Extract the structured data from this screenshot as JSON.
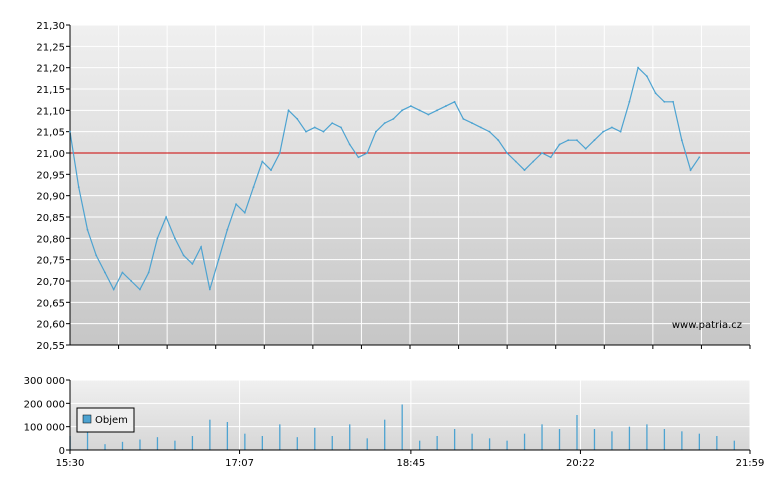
{
  "watermark": "www.patria.cz",
  "colors": {
    "line": "#4da3d1",
    "reference": "#cc0000",
    "volume": "#4da3d1",
    "grid": "#ffffff",
    "axis": "#000000",
    "legend_box": "#4da3d1"
  },
  "chart_data": [
    {
      "type": "line",
      "name": "price",
      "x_ticks": [
        "15:30",
        "17:07",
        "18:45",
        "20:22",
        "21:59"
      ],
      "y_ticks": [
        "21,30",
        "21,25",
        "21,20",
        "21,15",
        "21,10",
        "21,05",
        "21,00",
        "20,95",
        "20,90",
        "20,85",
        "20,80",
        "20,75",
        "20,70",
        "20,65",
        "20,60",
        "20,55"
      ],
      "ylim": [
        20.55,
        21.3
      ],
      "reference_value": 21.0,
      "grid": true,
      "series": [
        {
          "points": [
            [
              "15:30",
              21.05
            ],
            [
              "15:35",
              20.92
            ],
            [
              "15:40",
              20.82
            ],
            [
              "15:45",
              20.76
            ],
            [
              "15:50",
              20.72
            ],
            [
              "15:55",
              20.68
            ],
            [
              "16:00",
              20.72
            ],
            [
              "16:05",
              20.7
            ],
            [
              "16:10",
              20.68
            ],
            [
              "16:15",
              20.72
            ],
            [
              "16:20",
              20.8
            ],
            [
              "16:25",
              20.85
            ],
            [
              "16:30",
              20.8
            ],
            [
              "16:35",
              20.76
            ],
            [
              "16:40",
              20.74
            ],
            [
              "16:45",
              20.78
            ],
            [
              "16:50",
              20.68
            ],
            [
              "16:55",
              20.75
            ],
            [
              "17:00",
              20.82
            ],
            [
              "17:05",
              20.88
            ],
            [
              "17:10",
              20.86
            ],
            [
              "17:15",
              20.92
            ],
            [
              "17:20",
              20.98
            ],
            [
              "17:25",
              20.96
            ],
            [
              "17:30",
              21.0
            ],
            [
              "17:35",
              21.1
            ],
            [
              "17:40",
              21.08
            ],
            [
              "17:45",
              21.05
            ],
            [
              "17:50",
              21.06
            ],
            [
              "17:55",
              21.05
            ],
            [
              "18:00",
              21.07
            ],
            [
              "18:05",
              21.06
            ],
            [
              "18:10",
              21.02
            ],
            [
              "18:15",
              20.99
            ],
            [
              "18:20",
              21.0
            ],
            [
              "18:25",
              21.05
            ],
            [
              "18:30",
              21.07
            ],
            [
              "18:35",
              21.08
            ],
            [
              "18:40",
              21.1
            ],
            [
              "18:45",
              21.11
            ],
            [
              "18:50",
              21.1
            ],
            [
              "18:55",
              21.09
            ],
            [
              "19:00",
              21.1
            ],
            [
              "19:05",
              21.11
            ],
            [
              "19:10",
              21.12
            ],
            [
              "19:15",
              21.08
            ],
            [
              "19:20",
              21.07
            ],
            [
              "19:25",
              21.06
            ],
            [
              "19:30",
              21.05
            ],
            [
              "19:35",
              21.03
            ],
            [
              "19:40",
              21.0
            ],
            [
              "19:45",
              20.98
            ],
            [
              "19:50",
              20.96
            ],
            [
              "19:55",
              20.98
            ],
            [
              "20:00",
              21.0
            ],
            [
              "20:05",
              20.99
            ],
            [
              "20:10",
              21.02
            ],
            [
              "20:15",
              21.03
            ],
            [
              "20:20",
              21.03
            ],
            [
              "20:25",
              21.01
            ],
            [
              "20:30",
              21.03
            ],
            [
              "20:35",
              21.05
            ],
            [
              "20:40",
              21.06
            ],
            [
              "20:45",
              21.05
            ],
            [
              "20:50",
              21.12
            ],
            [
              "20:55",
              21.2
            ],
            [
              "21:00",
              21.18
            ],
            [
              "21:05",
              21.14
            ],
            [
              "21:10",
              21.12
            ],
            [
              "21:15",
              21.12
            ],
            [
              "21:20",
              21.03
            ],
            [
              "21:25",
              20.96
            ],
            [
              "21:30",
              20.99
            ]
          ]
        }
      ],
      "watermark": "www.patria.cz"
    },
    {
      "type": "bar",
      "name": "volume",
      "x_ticks": [
        "15:30",
        "17:07",
        "18:45",
        "20:22",
        "21:59"
      ],
      "y_ticks": [
        "300 000",
        "200 000",
        "100 000",
        "0"
      ],
      "ylim": [
        0,
        300000
      ],
      "grid": true,
      "legend": {
        "label": "Objem",
        "placement": "left"
      },
      "series": [
        {
          "name": "Objem",
          "points": [
            [
              "15:30",
              60000
            ],
            [
              "15:40",
              90000
            ],
            [
              "15:50",
              25000
            ],
            [
              "16:00",
              35000
            ],
            [
              "16:10",
              45000
            ],
            [
              "16:20",
              55000
            ],
            [
              "16:30",
              40000
            ],
            [
              "16:40",
              60000
            ],
            [
              "16:50",
              130000
            ],
            [
              "17:00",
              120000
            ],
            [
              "17:10",
              70000
            ],
            [
              "17:20",
              60000
            ],
            [
              "17:30",
              110000
            ],
            [
              "17:40",
              55000
            ],
            [
              "17:50",
              95000
            ],
            [
              "18:00",
              60000
            ],
            [
              "18:10",
              110000
            ],
            [
              "18:20",
              50000
            ],
            [
              "18:30",
              130000
            ],
            [
              "18:40",
              195000
            ],
            [
              "18:50",
              40000
            ],
            [
              "19:00",
              60000
            ],
            [
              "19:10",
              90000
            ],
            [
              "19:20",
              70000
            ],
            [
              "19:30",
              50000
            ],
            [
              "19:40",
              40000
            ],
            [
              "19:50",
              70000
            ],
            [
              "20:00",
              110000
            ],
            [
              "20:10",
              90000
            ],
            [
              "20:20",
              150000
            ],
            [
              "20:30",
              90000
            ],
            [
              "20:40",
              80000
            ],
            [
              "20:50",
              100000
            ],
            [
              "21:00",
              110000
            ],
            [
              "21:10",
              90000
            ],
            [
              "21:20",
              80000
            ],
            [
              "21:30",
              70000
            ],
            [
              "21:40",
              60000
            ],
            [
              "21:50",
              40000
            ]
          ]
        }
      ]
    }
  ]
}
